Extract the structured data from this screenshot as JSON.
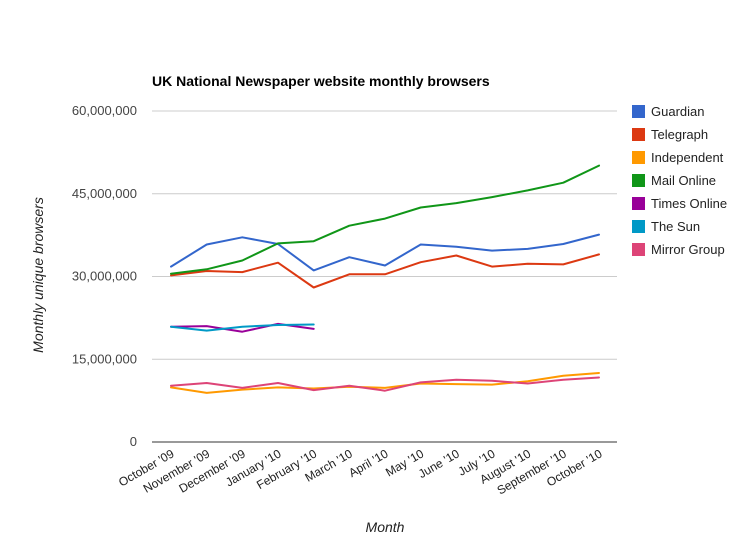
{
  "chart_data": {
    "type": "line",
    "title": "UK National Newspaper website monthly browsers",
    "xlabel": "Month",
    "ylabel": "Monthly unique browsers",
    "ylim": [
      0,
      60000000
    ],
    "yticks": [
      0,
      15000000,
      30000000,
      45000000,
      60000000
    ],
    "ytick_labels": [
      "0",
      "15,000,000",
      "30,000,000",
      "45,000,000",
      "60,000,000"
    ],
    "grid": true,
    "legend_position": "right",
    "categories": [
      "October '09",
      "November '09",
      "December '09",
      "January '10",
      "February '10",
      "March '10",
      "April '10",
      "May '10",
      "June '10",
      "July '10",
      "August '10",
      "September '10",
      "October '10"
    ],
    "series": [
      {
        "name": "Guardian",
        "color": "#3366cc",
        "values": [
          31800000,
          35800000,
          37100000,
          35900000,
          31100000,
          33500000,
          32000000,
          35800000,
          35400000,
          34700000,
          35000000,
          35900000,
          37600000
        ]
      },
      {
        "name": "Telegraph",
        "color": "#dc3912",
        "values": [
          30200000,
          31000000,
          30800000,
          32500000,
          28000000,
          30400000,
          30400000,
          32600000,
          33800000,
          31800000,
          32300000,
          32200000,
          34000000
        ]
      },
      {
        "name": "Independent",
        "color": "#ff9900",
        "values": [
          9900000,
          8900000,
          9500000,
          9900000,
          9700000,
          10000000,
          9800000,
          10600000,
          10500000,
          10400000,
          11000000,
          12000000,
          12500000
        ]
      },
      {
        "name": "Mail Online",
        "color": "#109618",
        "values": [
          30500000,
          31300000,
          32900000,
          36000000,
          36400000,
          39200000,
          40500000,
          42500000,
          43300000,
          44400000,
          45600000,
          47000000,
          50100000
        ]
      },
      {
        "name": "Times Online",
        "color": "#990099",
        "values": [
          20900000,
          21000000,
          20000000,
          21400000,
          20500000,
          null,
          null,
          null,
          null,
          null,
          null,
          null,
          null
        ]
      },
      {
        "name": "The Sun",
        "color": "#0099c6",
        "values": [
          20900000,
          20200000,
          20900000,
          21200000,
          21300000,
          null,
          null,
          null,
          null,
          null,
          null,
          null,
          null
        ]
      },
      {
        "name": "Mirror Group",
        "color": "#dd4477",
        "values": [
          10200000,
          10700000,
          9800000,
          10700000,
          9400000,
          10200000,
          9300000,
          10800000,
          11300000,
          11100000,
          10600000,
          11300000,
          11700000
        ]
      }
    ]
  }
}
